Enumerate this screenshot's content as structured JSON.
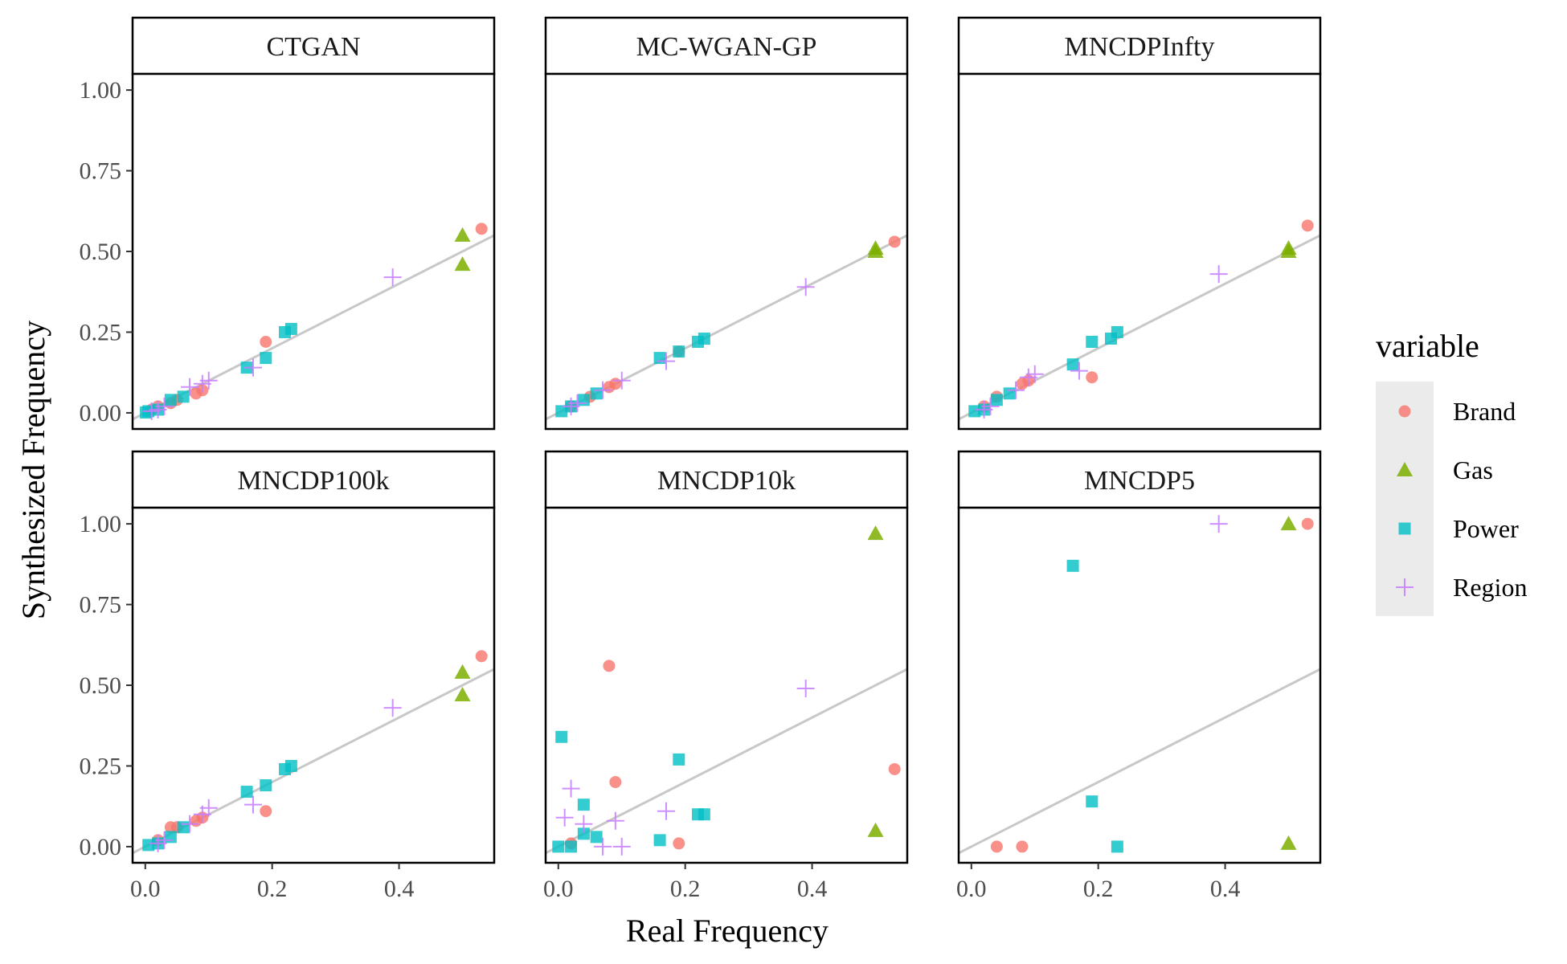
{
  "chart_data": {
    "type": "scatter",
    "title": "",
    "xlabel": "Real Frequency",
    "ylabel": "Synthesized Frequency",
    "xlim": [
      -0.02,
      0.55
    ],
    "ylim": [
      -0.05,
      1.05
    ],
    "x_ticks": [
      0.0,
      0.2,
      0.4
    ],
    "x_tick_labels": [
      "0.0",
      "0.2",
      "0.4"
    ],
    "y_ticks": [
      0.0,
      0.25,
      0.5,
      0.75,
      1.0
    ],
    "y_tick_labels": [
      "0.00",
      "0.25",
      "0.50",
      "0.75",
      "1.00"
    ],
    "reference_line": {
      "slope": 1,
      "intercept": 0,
      "color": "#c8c8c8"
    },
    "legend": {
      "title": "variable",
      "position": "right",
      "entries": [
        {
          "name": "Brand",
          "shape": "circle",
          "color": "#F8766D"
        },
        {
          "name": "Gas",
          "shape": "triangle",
          "color": "#7CAE00"
        },
        {
          "name": "Power",
          "shape": "square",
          "color": "#00BFC4"
        },
        {
          "name": "Region",
          "shape": "plus",
          "color": "#C77CFF"
        }
      ]
    },
    "facets": [
      {
        "name": "CTGAN",
        "series": {
          "Brand": [
            [
              0.53,
              0.57
            ],
            [
              0.19,
              0.22
            ],
            [
              0.09,
              0.07
            ],
            [
              0.08,
              0.06
            ],
            [
              0.05,
              0.04
            ],
            [
              0.04,
              0.03
            ],
            [
              0.02,
              0.02
            ],
            [
              0.01,
              0.01
            ]
          ],
          "Gas": [
            [
              0.5,
              0.55
            ],
            [
              0.5,
              0.46
            ]
          ],
          "Power": [
            [
              0.23,
              0.26
            ],
            [
              0.22,
              0.25
            ],
            [
              0.19,
              0.17
            ],
            [
              0.16,
              0.14
            ],
            [
              0.06,
              0.05
            ],
            [
              0.04,
              0.04
            ],
            [
              0.02,
              0.01
            ],
            [
              0.005,
              0.005
            ],
            [
              0.001,
              0.001
            ]
          ],
          "Region": [
            [
              0.39,
              0.42
            ],
            [
              0.17,
              0.14
            ],
            [
              0.1,
              0.1
            ],
            [
              0.09,
              0.09
            ],
            [
              0.07,
              0.08
            ],
            [
              0.03,
              0.02
            ],
            [
              0.02,
              0.01
            ],
            [
              0.01,
              0.005
            ]
          ]
        }
      },
      {
        "name": "MC-WGAN-GP",
        "series": {
          "Brand": [
            [
              0.53,
              0.53
            ],
            [
              0.19,
              0.19
            ],
            [
              0.09,
              0.09
            ],
            [
              0.08,
              0.08
            ],
            [
              0.05,
              0.05
            ],
            [
              0.02,
              0.02
            ]
          ],
          "Gas": [
            [
              0.5,
              0.5
            ],
            [
              0.5,
              0.51
            ]
          ],
          "Power": [
            [
              0.23,
              0.23
            ],
            [
              0.22,
              0.22
            ],
            [
              0.19,
              0.19
            ],
            [
              0.16,
              0.17
            ],
            [
              0.06,
              0.06
            ],
            [
              0.04,
              0.04
            ],
            [
              0.02,
              0.02
            ],
            [
              0.005,
              0.005
            ]
          ],
          "Region": [
            [
              0.39,
              0.39
            ],
            [
              0.17,
              0.16
            ],
            [
              0.1,
              0.1
            ],
            [
              0.07,
              0.07
            ],
            [
              0.03,
              0.03
            ],
            [
              0.02,
              0.02
            ]
          ]
        }
      },
      {
        "name": "MNCDPInfty",
        "series": {
          "Brand": [
            [
              0.53,
              0.58
            ],
            [
              0.19,
              0.11
            ],
            [
              0.09,
              0.1
            ],
            [
              0.08,
              0.09
            ],
            [
              0.04,
              0.05
            ],
            [
              0.02,
              0.02
            ]
          ],
          "Gas": [
            [
              0.5,
              0.51
            ],
            [
              0.5,
              0.5
            ]
          ],
          "Power": [
            [
              0.23,
              0.25
            ],
            [
              0.22,
              0.23
            ],
            [
              0.19,
              0.22
            ],
            [
              0.16,
              0.15
            ],
            [
              0.06,
              0.06
            ],
            [
              0.04,
              0.04
            ],
            [
              0.02,
              0.01
            ],
            [
              0.005,
              0.005
            ]
          ],
          "Region": [
            [
              0.39,
              0.43
            ],
            [
              0.17,
              0.13
            ],
            [
              0.1,
              0.12
            ],
            [
              0.09,
              0.11
            ],
            [
              0.07,
              0.07
            ],
            [
              0.03,
              0.02
            ],
            [
              0.02,
              0.01
            ]
          ]
        }
      },
      {
        "name": "MNCDP100k",
        "series": {
          "Brand": [
            [
              0.53,
              0.59
            ],
            [
              0.19,
              0.11
            ],
            [
              0.09,
              0.09
            ],
            [
              0.08,
              0.08
            ],
            [
              0.05,
              0.06
            ],
            [
              0.04,
              0.06
            ],
            [
              0.02,
              0.02
            ]
          ],
          "Gas": [
            [
              0.5,
              0.54
            ],
            [
              0.5,
              0.47
            ]
          ],
          "Power": [
            [
              0.23,
              0.25
            ],
            [
              0.22,
              0.24
            ],
            [
              0.19,
              0.19
            ],
            [
              0.16,
              0.17
            ],
            [
              0.06,
              0.06
            ],
            [
              0.04,
              0.03
            ],
            [
              0.02,
              0.01
            ],
            [
              0.005,
              0.005
            ]
          ],
          "Region": [
            [
              0.39,
              0.43
            ],
            [
              0.17,
              0.13
            ],
            [
              0.1,
              0.12
            ],
            [
              0.09,
              0.1
            ],
            [
              0.07,
              0.07
            ],
            [
              0.03,
              0.02
            ],
            [
              0.02,
              0.01
            ]
          ]
        }
      },
      {
        "name": "MNCDP10k",
        "series": {
          "Brand": [
            [
              0.08,
              0.56
            ],
            [
              0.09,
              0.2
            ],
            [
              0.53,
              0.24
            ],
            [
              0.19,
              0.01
            ],
            [
              0.02,
              0.01
            ]
          ],
          "Gas": [
            [
              0.5,
              0.97
            ],
            [
              0.5,
              0.05
            ]
          ],
          "Power": [
            [
              0.005,
              0.34
            ],
            [
              0.19,
              0.27
            ],
            [
              0.04,
              0.13
            ],
            [
              0.22,
              0.1
            ],
            [
              0.23,
              0.1
            ],
            [
              0.04,
              0.04
            ],
            [
              0.06,
              0.03
            ],
            [
              0.16,
              0.02
            ],
            [
              0.0,
              0.0
            ],
            [
              0.02,
              0.0
            ]
          ],
          "Region": [
            [
              0.39,
              0.49
            ],
            [
              0.02,
              0.18
            ],
            [
              0.17,
              0.11
            ],
            [
              0.01,
              0.09
            ],
            [
              0.09,
              0.08
            ],
            [
              0.04,
              0.07
            ],
            [
              0.07,
              0.0
            ],
            [
              0.1,
              0.0
            ]
          ]
        }
      },
      {
        "name": "MNCDP5",
        "series": {
          "Brand": [
            [
              0.53,
              1.0
            ],
            [
              0.04,
              0.0
            ],
            [
              0.08,
              0.0
            ]
          ],
          "Gas": [
            [
              0.5,
              1.0
            ],
            [
              0.5,
              0.01
            ]
          ],
          "Power": [
            [
              0.16,
              0.87
            ],
            [
              0.19,
              0.14
            ],
            [
              0.23,
              0.0
            ]
          ],
          "Region": [
            [
              0.39,
              1.0
            ]
          ]
        }
      }
    ]
  }
}
